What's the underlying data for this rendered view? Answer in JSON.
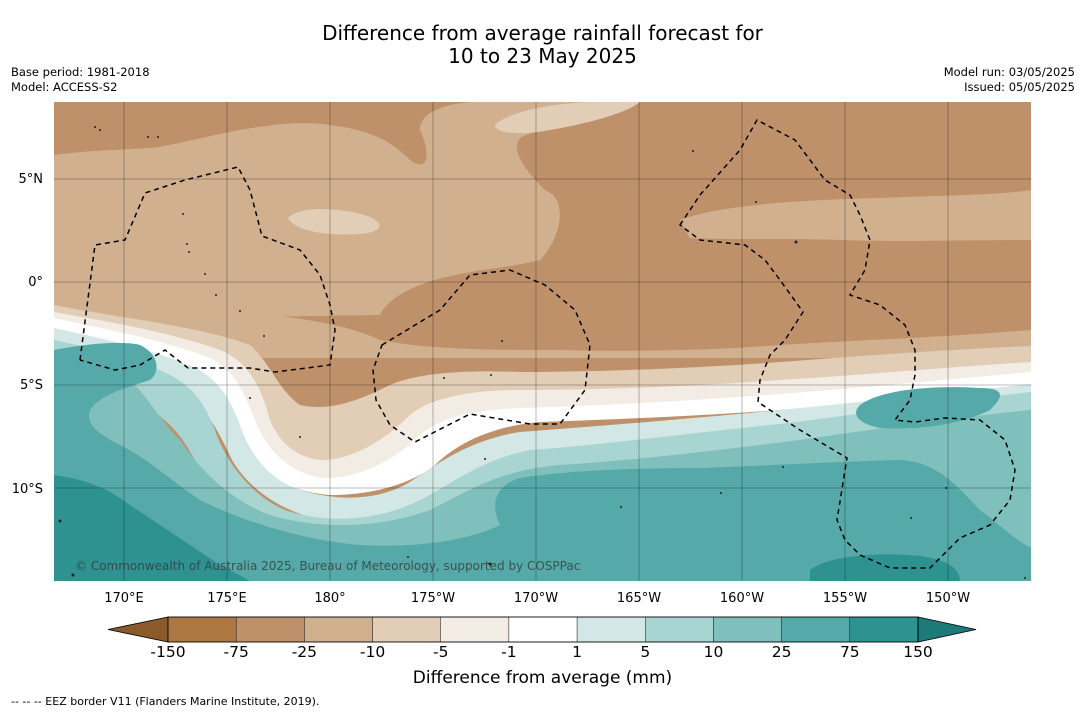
{
  "title_line1": "Difference from average rainfall forecast for",
  "title_line2": "10 to 23 May 2025",
  "base_period": "Base period: 1981-2018",
  "model": "Model: ACCESS-S2",
  "model_run": "Model run: 03/05/2025",
  "issued": "Issued: 05/05/2025",
  "copyright": "© Commonwealth of Australia 2025, Bureau of Meteorology, supported by COSPPac",
  "lat_labels": [
    "5°N",
    "0°",
    "5°S",
    "10°S"
  ],
  "lon_labels": [
    "170°E",
    "175°E",
    "180°",
    "175°W",
    "170°W",
    "165°W",
    "160°W",
    "155°W",
    "150°W"
  ],
  "colorbar": {
    "ticks": [
      "-150",
      "-75",
      "-25",
      "-10",
      "-5",
      "-1",
      "1",
      "5",
      "10",
      "25",
      "75",
      "150"
    ],
    "colors": [
      "#8b5a2b",
      "#ad7743",
      "#bf916a",
      "#d1b08f",
      "#e2cdb7",
      "#f2ece4",
      "#ffffff",
      "#d3e8e6",
      "#a8d4d1",
      "#7fbfbc",
      "#56a9a9",
      "#2e9390",
      "#1c7a78"
    ],
    "title": "Difference from average (mm)"
  },
  "legend_note": "--  --  -- EEZ border V11 (Flanders Marine Institute, 2019).",
  "map_colors": {
    "strong_dry": "#bf916a",
    "mid_dry": "#d1b08f",
    "light_dry": "#e2cdb7",
    "near_zero_dry": "#f2ece4",
    "neutral": "#ffffff",
    "light_wet": "#d3e8e6",
    "mid_wet": "#a8d4d1",
    "wet": "#7fbfbc",
    "strong_wet": "#56a9a9",
    "very_wet": "#2e9390"
  }
}
